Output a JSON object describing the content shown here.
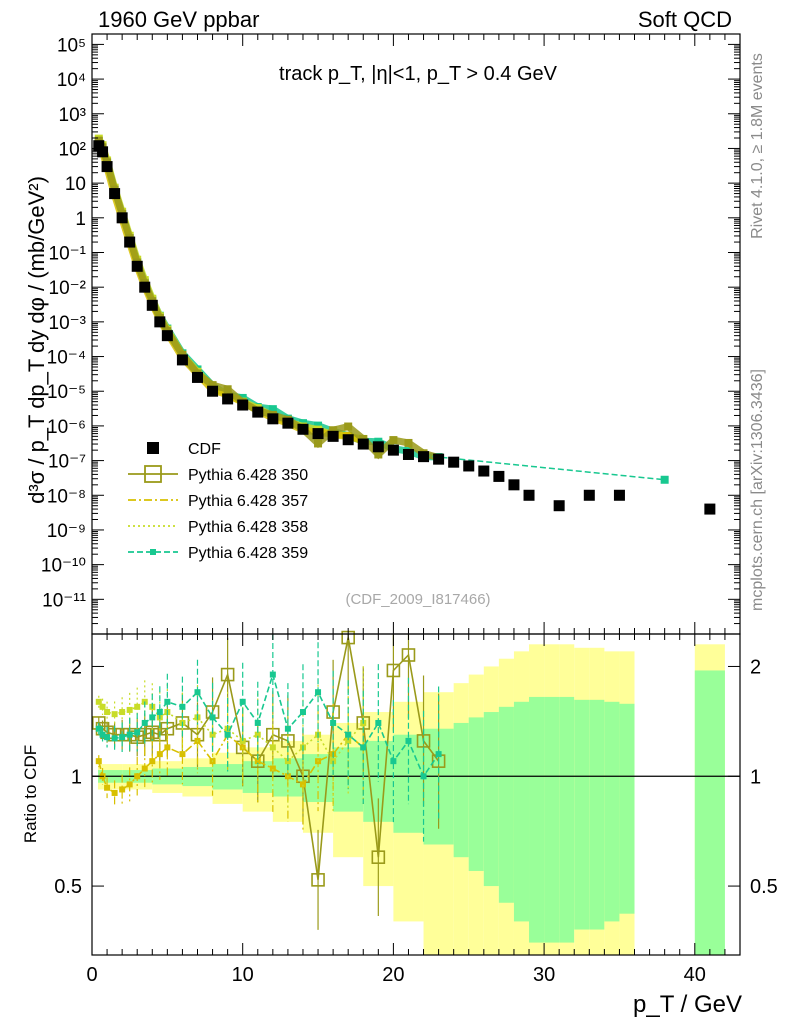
{
  "chart_data": {
    "type": "scatter",
    "header_left": "1960 GeV ppbar",
    "header_right": "Soft QCD",
    "title": "track p_T, |η|<1, p_T > 0.4 GeV",
    "watermark": "(CDF_2009_I817466)",
    "side_label_top": "Rivet 4.1.0, ≥ 1.8M events",
    "side_label_bottom": "mcplots.cern.ch [arXiv:1306.3436]",
    "ylabel": "d³σ / p_T dp_T dy dφ / (mb/GeV²)",
    "xlabel": "p_T / GeV",
    "ratio_ylabel": "Ratio to CDF",
    "xlim": [
      0,
      43
    ],
    "ylim_log": [
      -12,
      5.3
    ],
    "ratio_ylim_log": [
      -0.49,
      0.39
    ],
    "x_ticks": [
      "0",
      "10",
      "20",
      "30",
      "40"
    ],
    "y_ticks": [
      "10⁵",
      "10⁴",
      "10³",
      "10²",
      "10",
      "1",
      "10⁻¹",
      "10⁻²",
      "10⁻³",
      "10⁻⁴",
      "10⁻⁵",
      "10⁻⁶",
      "10⁻⁷",
      "10⁻⁸",
      "10⁻⁹",
      "10⁻¹⁰",
      "10⁻¹¹"
    ],
    "ratio_ticks": [
      "0.5",
      "1",
      "2"
    ],
    "legend": [
      {
        "name": "CDF",
        "color": "#000000",
        "style": "square"
      },
      {
        "name": "Pythia 6.428 350",
        "color": "#9a9a1a",
        "style": "open-square-solid"
      },
      {
        "name": "Pythia 6.428 357",
        "color": "#d8c000",
        "style": "dashdot"
      },
      {
        "name": "Pythia 6.428 358",
        "color": "#c8dc28",
        "style": "dotted"
      },
      {
        "name": "Pythia 6.428 359",
        "color": "#18c890",
        "style": "dashed-square"
      }
    ],
    "data": {
      "x": [
        0.45,
        0.7,
        1.0,
        1.5,
        2.0,
        2.5,
        3.0,
        3.5,
        4.0,
        4.5,
        5.0,
        6.0,
        7.0,
        8.0,
        9.0,
        10.0,
        11.0,
        12.0,
        13.0,
        14.0,
        15.0,
        16.0,
        17.0,
        18.0,
        19.0,
        20.0,
        21.0,
        22.0,
        23.0,
        24.0,
        25.0,
        26.0,
        27.0,
        28.0,
        29.0,
        31.0,
        33.0,
        35.0,
        41.0
      ],
      "y": [
        120,
        80,
        30,
        5,
        1,
        0.2,
        0.04,
        0.01,
        0.003,
        0.001,
        0.0004,
        8e-05,
        2.5e-05,
        1e-05,
        6e-06,
        4e-06,
        2.5e-06,
        1.6e-06,
        1.2e-06,
        8e-07,
        6e-07,
        5e-07,
        4e-07,
        3e-07,
        2.5e-07,
        2e-07,
        1.5e-07,
        1.3e-07,
        1.1e-07,
        9e-08,
        7e-08,
        5e-08,
        3.5e-08,
        2e-08,
        1e-08,
        5e-09,
        1e-08,
        1e-08,
        4e-09
      ]
    },
    "series": [
      {
        "name": "Pythia 6.428 350",
        "ratio": [
          1.4,
          1.35,
          1.32,
          1.3,
          1.3,
          1.3,
          1.28,
          1.3,
          1.32,
          1.3,
          1.35,
          1.4,
          1.3,
          1.5,
          1.9,
          1.2,
          1.1,
          1.3,
          1.25,
          1.0,
          0.52,
          1.5,
          2.4,
          1.4,
          0.6,
          1.95,
          2.15,
          1.25,
          1.1
        ]
      },
      {
        "name": "Pythia 6.428 357",
        "ratio": [
          1.1,
          1.0,
          0.93,
          0.9,
          0.92,
          0.95,
          1.0,
          1.05,
          1.1,
          1.15,
          1.2,
          1.15,
          1.25,
          1.1,
          1.3,
          1.2,
          1.1,
          1.05,
          1.0,
          0.95,
          1.1,
          1.15,
          1.3,
          1.2
        ]
      },
      {
        "name": "Pythia 6.428 358",
        "ratio": [
          1.6,
          1.55,
          1.5,
          1.48,
          1.5,
          1.52,
          1.55,
          1.6,
          1.55,
          1.45,
          1.5,
          1.4,
          1.45,
          1.3,
          1.35,
          1.25,
          1.3,
          1.2,
          1.1,
          1.2,
          1.3,
          1.1,
          1.25,
          1.4
        ]
      },
      {
        "name": "Pythia 6.428 359",
        "ratio": [
          1.35,
          1.3,
          1.28,
          1.27,
          1.28,
          1.3,
          1.32,
          1.4,
          1.45,
          1.5,
          1.6,
          1.55,
          1.7,
          1.45,
          1.3,
          1.6,
          1.4,
          1.9,
          1.35,
          1.5,
          1.7,
          1.4,
          1.3,
          1.2,
          1.4,
          1.1,
          1.25,
          1.0,
          1.15
        ]
      }
    ],
    "cdf_band": {
      "x_edges": [
        0.4,
        2,
        4,
        6,
        8,
        10,
        12,
        14,
        16,
        18,
        20,
        22,
        24,
        25,
        26,
        27,
        28,
        29,
        30,
        31,
        32,
        33,
        34,
        35,
        36
      ],
      "inner": [
        0.04,
        0.04,
        0.05,
        0.06,
        0.08,
        0.1,
        0.12,
        0.15,
        0.2,
        0.25,
        0.3,
        0.35,
        0.4,
        0.45,
        0.5,
        0.55,
        0.6,
        0.65,
        0.65,
        0.65,
        0.62,
        0.62,
        0.6,
        0.58
      ],
      "outer": [
        0.08,
        0.08,
        0.1,
        0.12,
        0.16,
        0.2,
        0.25,
        0.3,
        0.4,
        0.5,
        0.6,
        0.7,
        0.8,
        0.9,
        1.0,
        1.1,
        1.2,
        1.3,
        1.3,
        1.3,
        1.25,
        1.25,
        1.2,
        1.2
      ]
    }
  }
}
